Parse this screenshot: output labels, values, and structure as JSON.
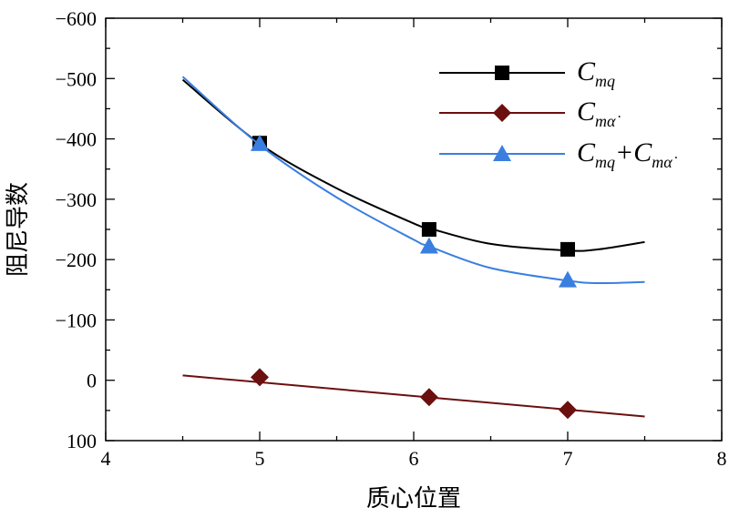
{
  "chart_data": {
    "type": "line",
    "xlabel": "质心位置",
    "ylabel": "阻尼导数",
    "xlim": [
      4,
      8
    ],
    "ylim": [
      100,
      -600
    ],
    "x_ticks": [
      4,
      5,
      6,
      7,
      8
    ],
    "y_ticks": [
      -600,
      -500,
      -400,
      -300,
      -200,
      -100,
      0,
      100
    ],
    "x_tick_labels": [
      "4",
      "5",
      "6",
      "7",
      "8"
    ],
    "y_tick_labels": [
      "−600",
      "−500",
      "−400",
      "−300",
      "−200",
      "−100",
      "0",
      "100"
    ],
    "legend_position": "top-right",
    "series": [
      {
        "name": "C_mq",
        "legend_main": "C",
        "legend_sub": "mq",
        "color": "#000000",
        "marker": "square",
        "points_x": [
          5.0,
          6.1,
          7.0
        ],
        "points_y": [
          -393,
          -250,
          -217
        ],
        "curve_x": [
          4.5,
          5.0,
          5.5,
          6.0,
          6.1,
          6.5,
          7.0,
          7.2,
          7.5
        ],
        "curve_y": [
          -498,
          -392,
          -318,
          -260,
          -252,
          -226,
          -215,
          -217,
          -229
        ]
      },
      {
        "name": "C_mα̇",
        "legend_main": "C",
        "legend_sub": "mα̇",
        "color": "#6b0f0f",
        "marker": "diamond",
        "points_x": [
          5.0,
          6.1,
          7.0
        ],
        "points_y": [
          -5,
          28,
          49
        ],
        "curve_x": [
          4.5,
          7.5
        ],
        "curve_y": [
          -8,
          60
        ]
      },
      {
        "name": "C_mq+C_mα̇",
        "legend_main": "C",
        "legend_sub": "mq",
        "legend_plus": "+C",
        "legend_sub2": "mα̇",
        "color": "#3a7fe0",
        "marker": "triangle",
        "points_x": [
          5.0,
          6.1,
          7.0
        ],
        "points_y": [
          -392,
          -222,
          -166
        ],
        "curve_x": [
          4.5,
          5.0,
          5.5,
          6.0,
          6.1,
          6.5,
          7.0,
          7.2,
          7.5
        ],
        "curve_y": [
          -503,
          -390,
          -303,
          -233,
          -222,
          -186,
          -165,
          -161,
          -163
        ]
      }
    ]
  }
}
